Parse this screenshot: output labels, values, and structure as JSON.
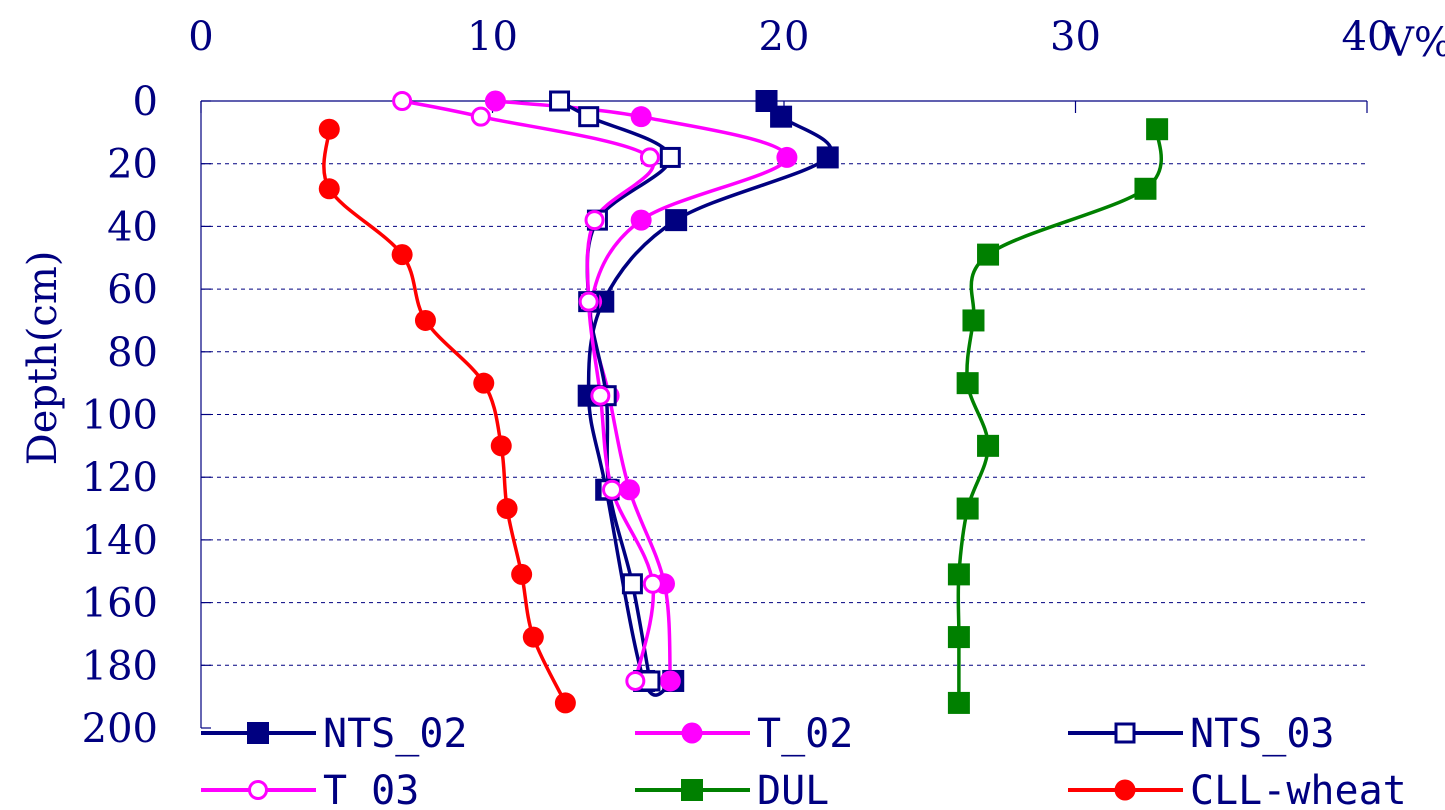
{
  "chart_data": {
    "type": "line",
    "title": "",
    "xlabel": "V%",
    "ylabel": "Depth(cm)",
    "xlim": [
      0,
      40
    ],
    "ylim": [
      0,
      200
    ],
    "x_ticks": [
      "0",
      "10",
      "20",
      "30",
      "40"
    ],
    "y_ticks": [
      "0",
      "20",
      "40",
      "60",
      "80",
      "100",
      "120",
      "140",
      "160",
      "180",
      "200"
    ],
    "grid": true,
    "legend_position": "bottom",
    "series": [
      {
        "name": "NTS_02",
        "color": "#000080",
        "marker": "square-filled",
        "points": [
          [
            19.4,
            0
          ],
          [
            19.9,
            5
          ],
          [
            21.5,
            18
          ],
          [
            16.3,
            38
          ],
          [
            13.8,
            64
          ],
          [
            13.3,
            94
          ],
          [
            13.9,
            124
          ],
          [
            15.2,
            185
          ],
          [
            16.2,
            185
          ]
        ]
      },
      {
        "name": "T_02",
        "color": "#ff00ff",
        "marker": "circle-filled",
        "points": [
          [
            10.1,
            0
          ],
          [
            15.1,
            5
          ],
          [
            20.1,
            18
          ],
          [
            15.1,
            38
          ],
          [
            13.4,
            64
          ],
          [
            14.0,
            94
          ],
          [
            14.7,
            124
          ],
          [
            15.9,
            154
          ],
          [
            16.1,
            185
          ]
        ]
      },
      {
        "name": "NTS_03",
        "color": "#000080",
        "marker": "square-open",
        "points": [
          [
            12.3,
            0
          ],
          [
            13.3,
            5
          ],
          [
            16.1,
            18
          ],
          [
            13.6,
            38
          ],
          [
            13.3,
            64
          ],
          [
            13.9,
            94
          ],
          [
            14.0,
            124
          ],
          [
            14.8,
            154
          ],
          [
            15.4,
            185
          ]
        ]
      },
      {
        "name": "T_03",
        "color": "#ff00ff",
        "marker": "circle-open",
        "points": [
          [
            6.9,
            0
          ],
          [
            9.6,
            5
          ],
          [
            15.4,
            18
          ],
          [
            13.5,
            38
          ],
          [
            13.3,
            64
          ],
          [
            13.7,
            94
          ],
          [
            14.1,
            124
          ],
          [
            15.5,
            154
          ],
          [
            14.9,
            185
          ]
        ]
      },
      {
        "name": "DUL",
        "color": "#008000",
        "marker": "square-filled",
        "points": [
          [
            32.8,
            9
          ],
          [
            32.4,
            28
          ],
          [
            27.0,
            49
          ],
          [
            26.5,
            70
          ],
          [
            26.3,
            90
          ],
          [
            27.0,
            110
          ],
          [
            26.3,
            130
          ],
          [
            26.0,
            151
          ],
          [
            26.0,
            171
          ],
          [
            26.0,
            192
          ]
        ]
      },
      {
        "name": "CLL-wheat",
        "color": "#ff0000",
        "marker": "circle-filled",
        "points": [
          [
            4.4,
            9
          ],
          [
            4.4,
            28
          ],
          [
            6.9,
            49
          ],
          [
            7.7,
            70
          ],
          [
            9.7,
            90
          ],
          [
            10.3,
            110
          ],
          [
            10.5,
            130
          ],
          [
            11.0,
            151
          ],
          [
            11.4,
            171
          ],
          [
            12.5,
            192
          ]
        ]
      }
    ]
  }
}
